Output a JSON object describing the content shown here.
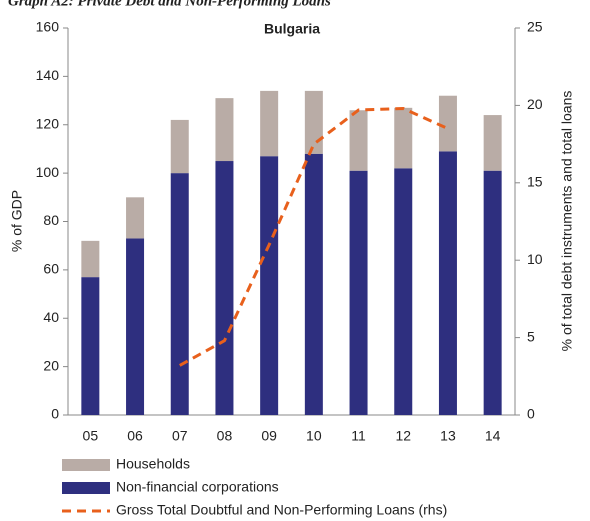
{
  "chart_data": {
    "type": "bar",
    "heading": "Graph A2: Private Debt and Non-Performing Loans",
    "title": "Bulgaria",
    "ylabel": "% of GDP",
    "y2label": "% of total debt instruments and total loans",
    "categories": [
      "05",
      "06",
      "07",
      "08",
      "09",
      "10",
      "11",
      "12",
      "13",
      "14"
    ],
    "stacked": true,
    "series": [
      {
        "name": "Non-financial corporations",
        "color": "#2e2f7f",
        "values": [
          57,
          73,
          100,
          105,
          107,
          108,
          101,
          102,
          109,
          101
        ]
      },
      {
        "name": "Households",
        "color": "#b9aca6",
        "values": [
          15,
          17,
          22,
          26,
          27,
          26,
          25,
          25,
          23,
          23
        ]
      },
      {
        "name": "Gross Total Doubtful and Non-Performing Loans (rhs)",
        "type": "line",
        "axis": "y2",
        "color": "#e8601c",
        "dashed": true,
        "values": [
          null,
          null,
          3.2,
          4.8,
          11,
          17.5,
          19.7,
          19.8,
          18.5,
          null
        ]
      }
    ],
    "legend_order": [
      1,
      0,
      2
    ],
    "ylim": [
      0,
      160
    ],
    "yticks": [
      0,
      20,
      40,
      60,
      80,
      100,
      120,
      140,
      160
    ],
    "y2lim": [
      0,
      25
    ],
    "y2ticks": [
      0,
      5,
      10,
      15,
      20,
      25
    ]
  }
}
